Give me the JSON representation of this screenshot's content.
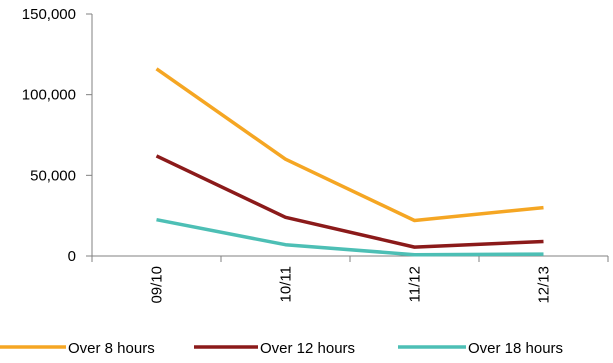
{
  "chart_data": {
    "type": "line",
    "title": "",
    "xlabel": "",
    "ylabel": "",
    "categories": [
      "09/10",
      "10/11",
      "11/12",
      "12/13"
    ],
    "y_ticks": [
      "0",
      "50,000",
      "100,000",
      "150,000"
    ],
    "ylim": [
      0,
      150000
    ],
    "grid": false,
    "legend_position": "bottom",
    "series": [
      {
        "name": "Over 8 hours",
        "color": "#F5A623",
        "values": [
          116000,
          60000,
          22000,
          30000
        ]
      },
      {
        "name": "Over 12 hours",
        "color": "#8B1A1A",
        "values": [
          62000,
          24000,
          5500,
          9000
        ]
      },
      {
        "name": "Over 18 hours",
        "color": "#4DBFB5",
        "values": [
          22500,
          7000,
          800,
          1200
        ]
      }
    ]
  }
}
